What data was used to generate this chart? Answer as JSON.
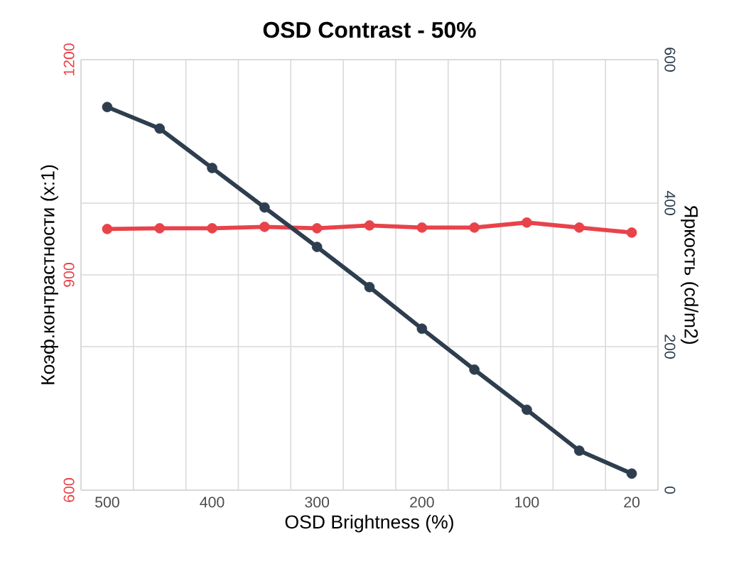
{
  "chart_data": {
    "type": "line",
    "title": "OSD Contrast - 50%",
    "xlabel": "OSD Brightness (%)",
    "ylabel": "Коэф.контрастности (x:1)",
    "y2label": "Яркость (cd/m2)",
    "categories": [
      "500",
      null,
      "400",
      null,
      "300",
      null,
      "200",
      null,
      "100",
      null,
      "20"
    ],
    "series": [
      {
        "color": "#e8434a",
        "values": [
          964,
          965,
          965,
          967,
          965,
          969,
          966,
          966,
          973,
          966,
          959
        ]
      },
      {
        "color": "#2e3e4e",
        "axis": "y2",
        "values": [
          534,
          504,
          449,
          394,
          339,
          283,
          225,
          168,
          112,
          55,
          23
        ]
      }
    ],
    "ylim": [
      600,
      1200
    ],
    "yticks": [
      600,
      900,
      1200
    ],
    "y2lim": [
      0,
      600
    ],
    "y2ticks": [
      0,
      200,
      400,
      600
    ],
    "grid": true,
    "marker": "circle",
    "line_style": "solid"
  }
}
